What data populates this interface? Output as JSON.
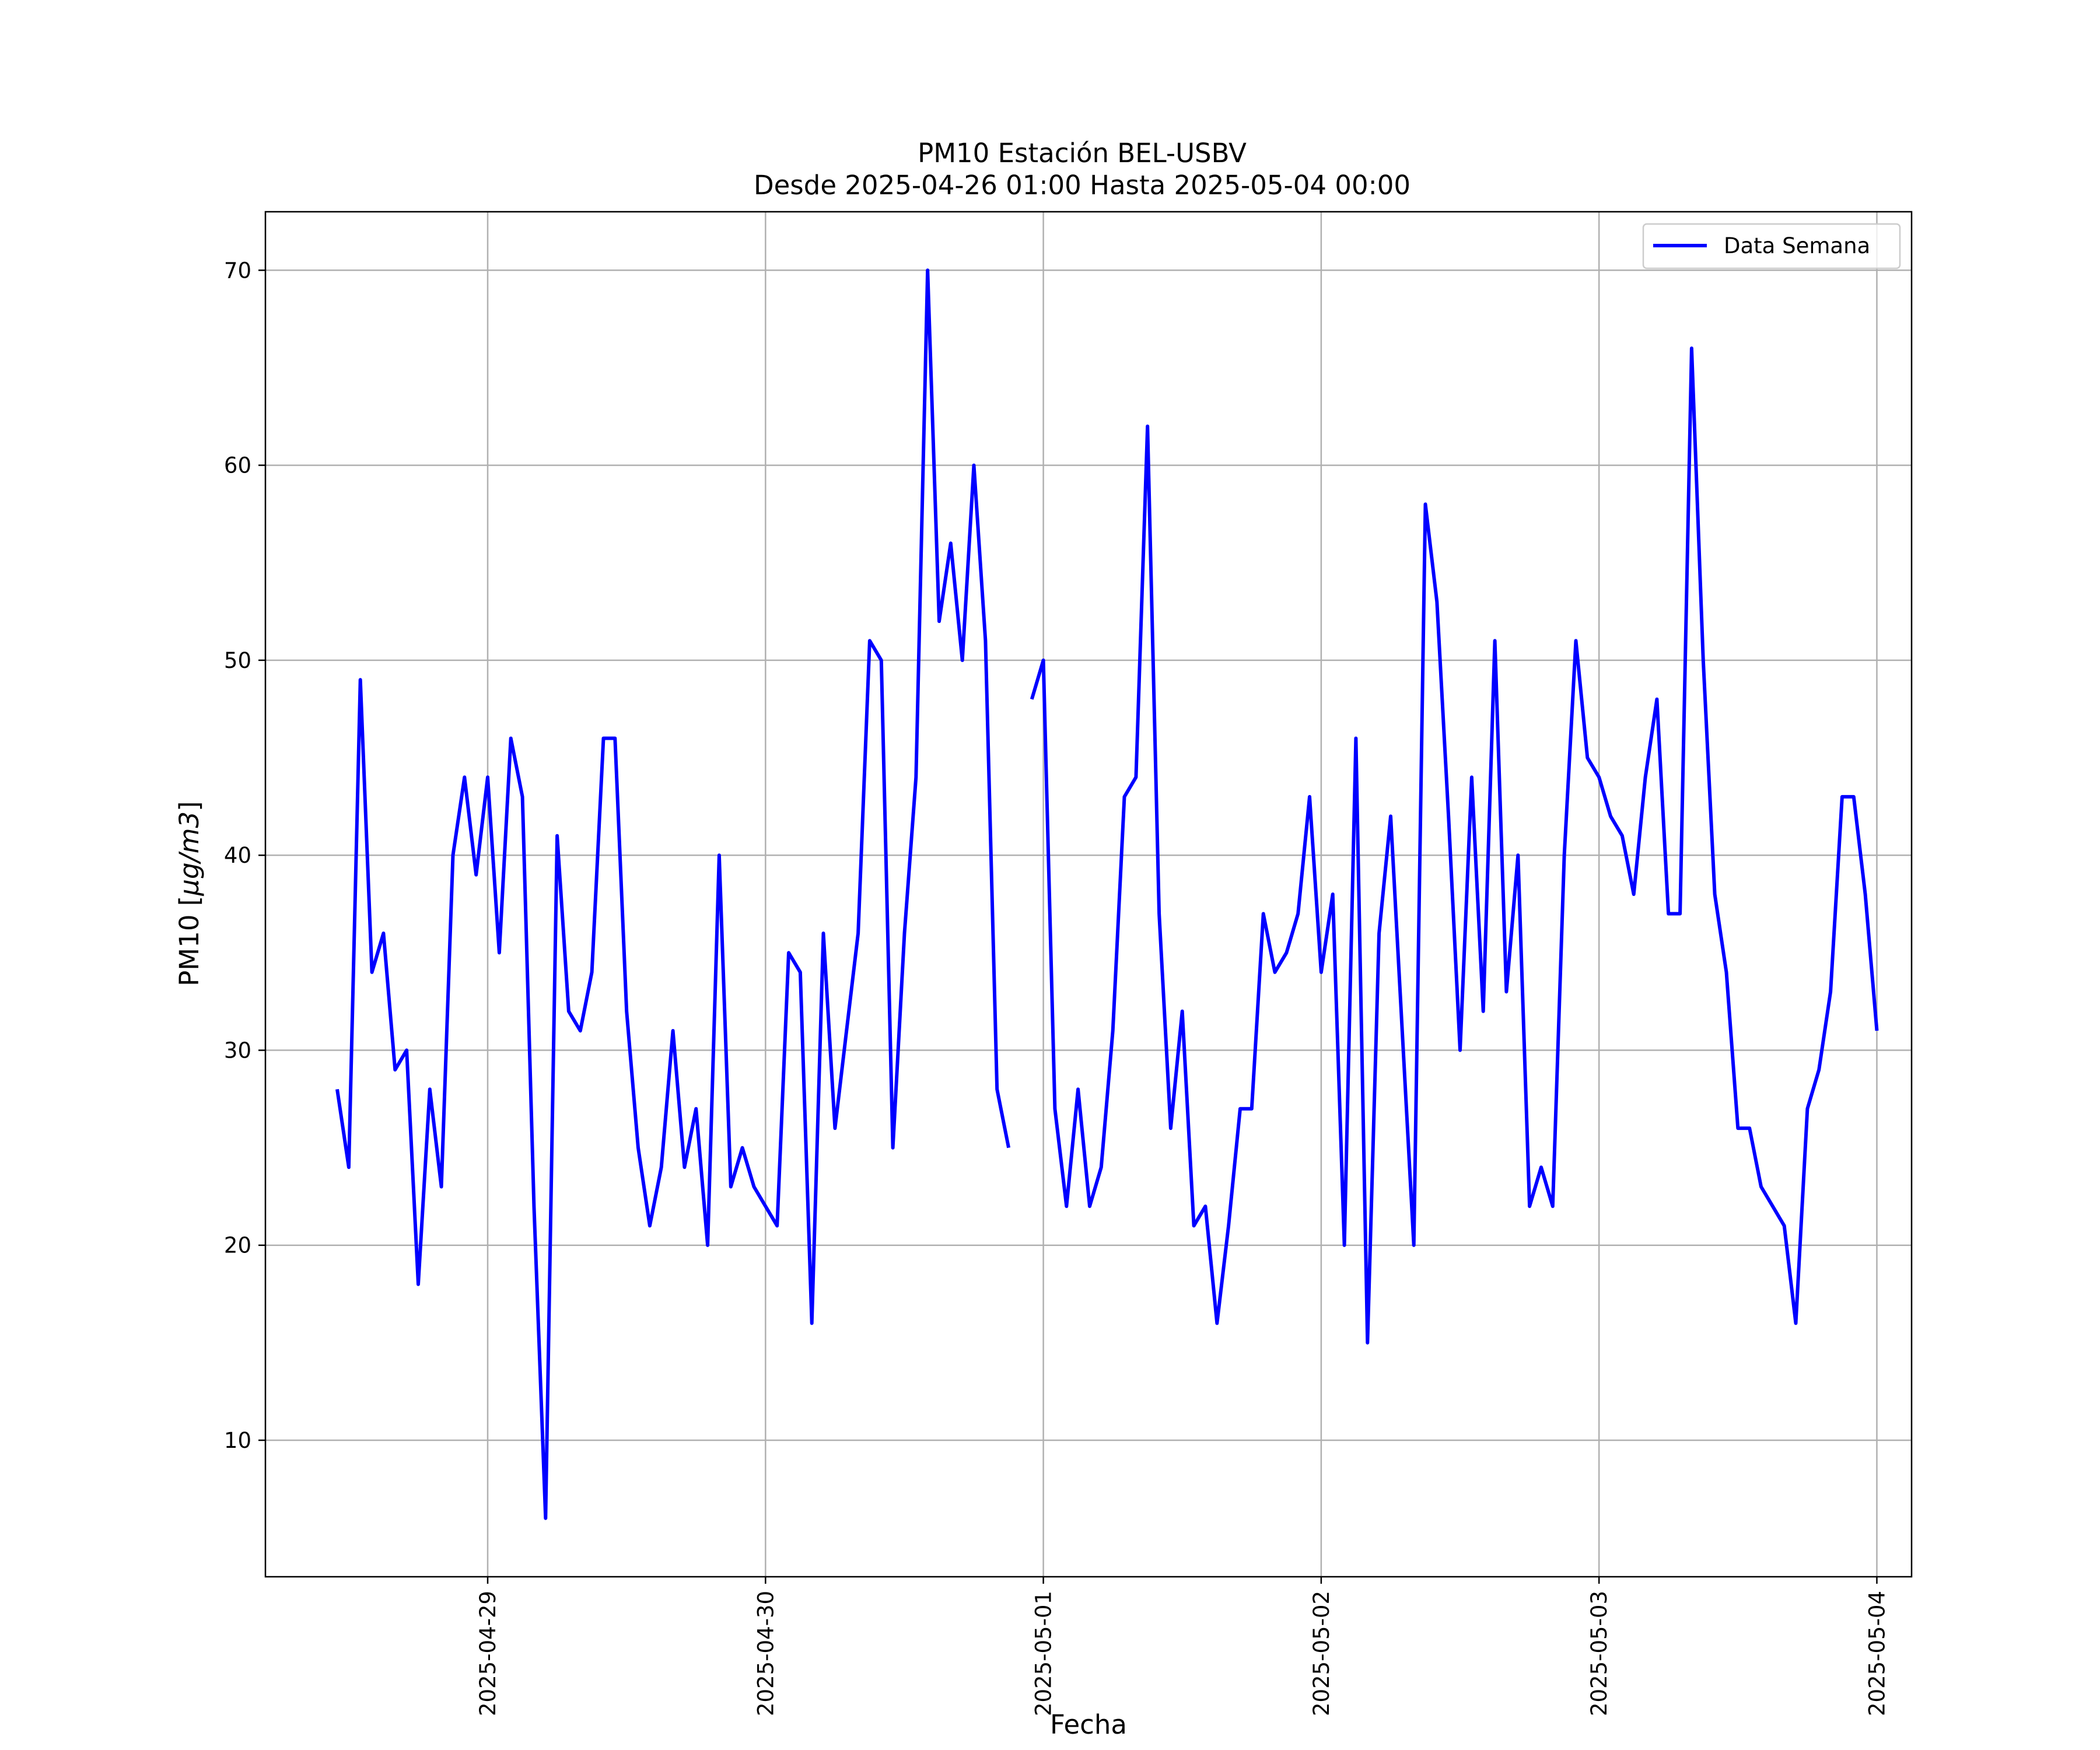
{
  "chart_data": {
    "type": "line",
    "title_line1": "PM10 Estación BEL-USBV",
    "title_line2": "Desde 2025-04-26 01:00 Hasta 2025-05-04 00:00",
    "xlabel": "Fecha",
    "ylabel": "PM10 [µg/m3]",
    "xlim": [
      "2025-04-28T04:48",
      "2025-05-04T03:00"
    ],
    "ylim": [
      3,
      73
    ],
    "x_ticks": [
      "2025-04-29",
      "2025-04-30",
      "2025-05-01",
      "2025-05-02",
      "2025-05-03",
      "2025-05-04"
    ],
    "y_ticks": [
      10,
      20,
      30,
      40,
      50,
      60,
      70
    ],
    "grid": true,
    "legend_position": "top-right",
    "colors": {
      "series": "#0000ff",
      "grid": "#b0b0b0",
      "axes": "#000000"
    },
    "series": [
      {
        "name": "Data Semana",
        "start": "2025-04-28T11:00",
        "interval_hours": 1,
        "values": [
          28,
          24,
          49,
          34,
          36,
          29,
          30,
          18,
          28,
          23,
          40,
          44,
          39,
          44,
          35,
          46,
          43,
          22,
          6,
          41,
          32,
          31,
          34,
          46,
          46,
          32,
          25,
          21,
          24,
          31,
          24,
          27,
          20,
          40,
          23,
          25,
          23,
          22,
          21,
          35,
          34,
          16,
          36,
          26,
          31,
          36,
          51,
          50,
          25,
          36,
          44,
          70,
          52,
          56,
          50,
          60,
          51,
          28,
          25,
          null,
          48,
          50,
          27,
          22,
          28,
          22,
          24,
          31,
          43,
          44,
          62,
          37,
          26,
          32,
          21,
          22,
          16,
          21,
          27,
          27,
          37,
          34,
          35,
          37,
          43,
          34,
          38,
          20,
          46,
          15,
          36,
          42,
          31,
          20,
          58,
          53,
          42,
          30,
          44,
          32,
          51,
          33,
          40,
          22,
          24,
          22,
          40,
          51,
          45,
          44,
          42,
          41,
          38,
          44,
          48,
          37,
          37,
          66,
          50,
          38,
          34,
          26,
          26,
          23,
          22,
          21,
          16,
          27,
          29,
          33,
          43,
          43,
          38,
          31
        ]
      }
    ]
  }
}
